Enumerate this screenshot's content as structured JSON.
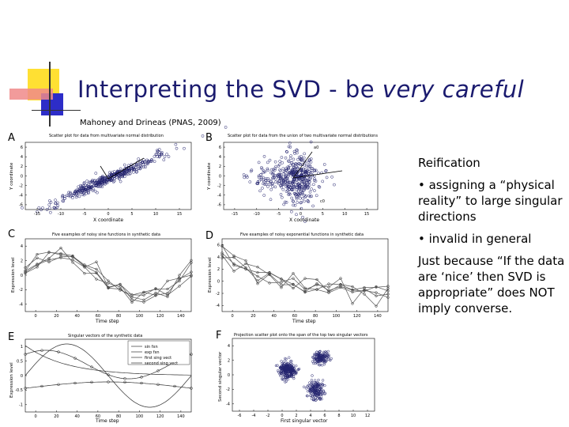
{
  "slide": {
    "title_prefix": "Interpreting the SVD - be ",
    "title_emph": "very careful",
    "citation": "Mahoney and Drineas (PNAS, 2009)"
  },
  "panels": {
    "A": {
      "letter": "A",
      "title": "Scatter plot for data from multivariate normal distribution",
      "xlabel": "X coordinate",
      "ylabel": "Y coordinate",
      "xticks": [
        "-15",
        "-10",
        "-5",
        "0",
        "5",
        "10",
        "15"
      ],
      "yticks": [
        "6",
        "4",
        "2",
        "0",
        "-2",
        "-4",
        "-6"
      ]
    },
    "B": {
      "letter": "B",
      "title": "Scatter plot for data from the union of two multivariate normal distributions",
      "xlabel": "X coordinate",
      "ylabel": "Y coordinate",
      "xticks": [
        "-15",
        "-10",
        "-5",
        "0",
        "5",
        "10",
        "15"
      ],
      "yticks": [
        "6",
        "4",
        "2",
        "0",
        "-2",
        "-4",
        "-6"
      ],
      "label_a": "a0",
      "label_b": "c0"
    },
    "C": {
      "letter": "C",
      "title": "Five examples of noisy sine functions in synthetic data",
      "xlabel": "Time step",
      "ylabel": "Expression level",
      "xticks": [
        "0",
        "20",
        "40",
        "60",
        "80",
        "100",
        "120",
        "140"
      ],
      "yticks": [
        "4",
        "2",
        "0",
        "-2",
        "-4"
      ]
    },
    "D": {
      "letter": "D",
      "title": "Five examples of noisy exponential functions in synthetic data",
      "xlabel": "Time step",
      "ylabel": "Expression level",
      "xticks": [
        "0",
        "20",
        "40",
        "60",
        "80",
        "100",
        "120",
        "140"
      ],
      "yticks": [
        "6",
        "4",
        "2",
        "0",
        "-2",
        "-4"
      ]
    },
    "E": {
      "letter": "E",
      "title": "Singular vectors of the synthetic data",
      "xlabel": "Time step",
      "ylabel": "Expression level",
      "xticks": [
        "0",
        "20",
        "40",
        "60",
        "80",
        "100",
        "120",
        "140"
      ],
      "yticks": [
        "1",
        "0.5",
        "0",
        "-0.5",
        "-1"
      ],
      "legend": [
        "sin fxn",
        "exp fxn",
        "first sing vect",
        "second sing vect"
      ]
    },
    "F": {
      "letter": "F",
      "title": "Projection scatter plot onto the span of the top two singular vectors",
      "xlabel": "First singular vector",
      "ylabel": "Second singular vector",
      "xticks": [
        "-6",
        "-4",
        "-2",
        "0",
        "2",
        "4",
        "6",
        "8",
        "10",
        "12"
      ],
      "yticks": [
        "4",
        "2",
        "0",
        "-2",
        "-4"
      ]
    }
  },
  "sidebar": {
    "heading": "Reification",
    "bullet1": "• assigning a “physical reality” to large singular directions",
    "bullet2": "• invalid in general",
    "closing": "Just because “If the data are ‘nice’ then SVD is appropriate” does NOT imply converse."
  },
  "colors": {
    "title": "#1a1a6e",
    "marker": "#23236e",
    "deco_yellow": "#ffe033",
    "deco_blue": "#2d2dc8",
    "deco_red": "#e83838"
  }
}
